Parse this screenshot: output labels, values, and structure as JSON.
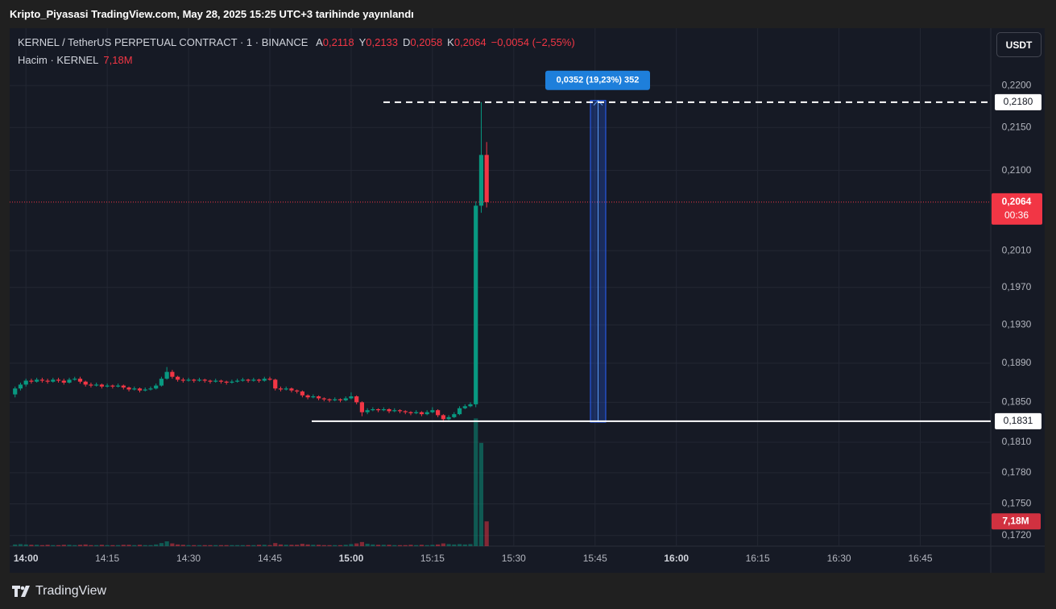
{
  "published": "Kripto_Piyasasi TradingView.com, May 28, 2025 15:25 UTC+3 tarihinde yayınlandı",
  "footer": "TradingView",
  "chart_data": {
    "type": "candlestick",
    "title": "KERNEL / TetherUS PERPETUAL CONTRACT · 1 · BINANCE",
    "legend": {
      "labels": [
        "A",
        "Y",
        "D",
        "K"
      ],
      "values": [
        "0,2118",
        "0,2133",
        "0,2058",
        "0,2064"
      ],
      "change": "−0,0054 (−2,55%)"
    },
    "currency": "USDT",
    "up_color": "#089981",
    "down_color": "#f23645",
    "log_scale": true,
    "grid": true,
    "x": [
      "13:58",
      "13:59",
      "14:00",
      "14:01",
      "14:02",
      "14:03",
      "14:04",
      "14:05",
      "14:06",
      "14:07",
      "14:08",
      "14:09",
      "14:10",
      "14:11",
      "14:12",
      "14:13",
      "14:14",
      "14:15",
      "14:16",
      "14:17",
      "14:18",
      "14:19",
      "14:20",
      "14:21",
      "14:22",
      "14:23",
      "14:24",
      "14:25",
      "14:26",
      "14:27",
      "14:28",
      "14:29",
      "14:30",
      "14:31",
      "14:32",
      "14:33",
      "14:34",
      "14:35",
      "14:36",
      "14:37",
      "14:38",
      "14:39",
      "14:40",
      "14:41",
      "14:42",
      "14:43",
      "14:44",
      "14:45",
      "14:46",
      "14:47",
      "14:48",
      "14:49",
      "14:50",
      "14:51",
      "14:52",
      "14:53",
      "14:54",
      "14:55",
      "14:56",
      "14:57",
      "14:58",
      "14:59",
      "15:00",
      "15:01",
      "15:02",
      "15:03",
      "15:04",
      "15:05",
      "15:06",
      "15:07",
      "15:08",
      "15:09",
      "15:10",
      "15:11",
      "15:12",
      "15:13",
      "15:14",
      "15:15",
      "15:16",
      "15:17",
      "15:18",
      "15:19",
      "15:20",
      "15:21",
      "15:22",
      "15:23",
      "15:24",
      "15:25"
    ],
    "open": [
      0.1858,
      0.1864,
      0.1868,
      0.1872,
      0.1871,
      0.1873,
      0.1872,
      0.1871,
      0.1873,
      0.1872,
      0.187,
      0.1873,
      0.1874,
      0.1871,
      0.1868,
      0.1867,
      0.1868,
      0.1866,
      0.1867,
      0.1866,
      0.1867,
      0.1865,
      0.1863,
      0.1864,
      0.1862,
      0.1863,
      0.1864,
      0.1867,
      0.1874,
      0.1881,
      0.1876,
      0.1873,
      0.1872,
      0.1873,
      0.1872,
      0.1873,
      0.1872,
      0.1871,
      0.1872,
      0.1871,
      0.187,
      0.1871,
      0.1872,
      0.1873,
      0.1872,
      0.1873,
      0.1872,
      0.1874,
      0.1873,
      0.1864,
      0.1863,
      0.1864,
      0.1862,
      0.1861,
      0.1857,
      0.1855,
      0.1856,
      0.1854,
      0.1853,
      0.1852,
      0.1853,
      0.1852,
      0.1854,
      0.1856,
      0.185,
      0.184,
      0.1842,
      0.1843,
      0.1842,
      0.1843,
      0.1841,
      0.1842,
      0.1841,
      0.184,
      0.1839,
      0.184,
      0.1838,
      0.184,
      0.1842,
      0.1837,
      0.1833,
      0.1835,
      0.1838,
      0.1844,
      0.1846,
      0.1848,
      0.206,
      0.2118
    ],
    "high": [
      0.1866,
      0.187,
      0.1874,
      0.1874,
      0.1875,
      0.1875,
      0.1874,
      0.1875,
      0.1875,
      0.1874,
      0.1875,
      0.1876,
      0.1876,
      0.1872,
      0.187,
      0.187,
      0.1869,
      0.1869,
      0.1868,
      0.1869,
      0.1868,
      0.1866,
      0.1866,
      0.1865,
      0.1865,
      0.1866,
      0.1869,
      0.1876,
      0.1886,
      0.1883,
      0.1877,
      0.1875,
      0.1875,
      0.1874,
      0.1875,
      0.1874,
      0.1873,
      0.1874,
      0.1873,
      0.1872,
      0.1873,
      0.1874,
      0.1875,
      0.1874,
      0.1875,
      0.1874,
      0.1876,
      0.1876,
      0.1874,
      0.1866,
      0.1866,
      0.1865,
      0.1863,
      0.1862,
      0.1858,
      0.1858,
      0.1857,
      0.1855,
      0.1854,
      0.1855,
      0.1854,
      0.1856,
      0.186,
      0.1857,
      0.1851,
      0.1844,
      0.1845,
      0.1844,
      0.1845,
      0.1844,
      0.1844,
      0.1843,
      0.1842,
      0.1841,
      0.1842,
      0.1841,
      0.1842,
      0.1845,
      0.1843,
      0.1838,
      0.1837,
      0.184,
      0.1846,
      0.1848,
      0.185,
      0.2065,
      0.218,
      0.2133
    ],
    "low": [
      0.1855,
      0.1862,
      0.1866,
      0.1869,
      0.187,
      0.187,
      0.1869,
      0.187,
      0.187,
      0.1868,
      0.1869,
      0.1872,
      0.1869,
      0.1866,
      0.1865,
      0.1866,
      0.1864,
      0.1865,
      0.1864,
      0.1865,
      0.1863,
      0.1861,
      0.1862,
      0.186,
      0.1861,
      0.1862,
      0.1863,
      0.1866,
      0.1873,
      0.1874,
      0.1871,
      0.187,
      0.1871,
      0.187,
      0.1871,
      0.187,
      0.1869,
      0.187,
      0.1869,
      0.1868,
      0.1869,
      0.187,
      0.1871,
      0.187,
      0.1871,
      0.187,
      0.1871,
      0.1872,
      0.1862,
      0.1861,
      0.1862,
      0.186,
      0.1859,
      0.1855,
      0.1853,
      0.1854,
      0.1852,
      0.1851,
      0.185,
      0.1851,
      0.185,
      0.1851,
      0.1853,
      0.1848,
      0.1836,
      0.1838,
      0.1841,
      0.184,
      0.1841,
      0.1839,
      0.184,
      0.1839,
      0.1838,
      0.1837,
      0.1838,
      0.1836,
      0.1837,
      0.1839,
      0.1835,
      0.183,
      0.1832,
      0.1834,
      0.1837,
      0.1843,
      0.1845,
      0.1845,
      0.2052,
      0.2058
    ],
    "close": [
      0.1864,
      0.1868,
      0.1872,
      0.1871,
      0.1873,
      0.1872,
      0.1871,
      0.1873,
      0.1872,
      0.187,
      0.1873,
      0.1874,
      0.1871,
      0.1868,
      0.1867,
      0.1868,
      0.1866,
      0.1867,
      0.1866,
      0.1867,
      0.1865,
      0.1863,
      0.1864,
      0.1862,
      0.1863,
      0.1864,
      0.1867,
      0.1874,
      0.1881,
      0.1876,
      0.1873,
      0.1872,
      0.1873,
      0.1872,
      0.1873,
      0.1872,
      0.1871,
      0.1872,
      0.1871,
      0.187,
      0.1871,
      0.1872,
      0.1873,
      0.1872,
      0.1873,
      0.1872,
      0.1874,
      0.1873,
      0.1864,
      0.1863,
      0.1864,
      0.1862,
      0.1861,
      0.1857,
      0.1855,
      0.1856,
      0.1854,
      0.1853,
      0.1852,
      0.1853,
      0.1852,
      0.1854,
      0.1856,
      0.185,
      0.184,
      0.1842,
      0.1843,
      0.1842,
      0.1843,
      0.1841,
      0.1842,
      0.1841,
      0.184,
      0.1839,
      0.184,
      0.1838,
      0.184,
      0.1842,
      0.1837,
      0.1833,
      0.1835,
      0.1838,
      0.1844,
      0.1846,
      0.1848,
      0.206,
      0.2118,
      0.2064
    ],
    "volume": {
      "title": "Hacim · KERNEL",
      "last_label": "7,18M",
      "ylim": [
        0,
        150
      ],
      "values": [
        0.5,
        0.6,
        0.5,
        0.4,
        0.4,
        0.3,
        0.4,
        0.3,
        0.3,
        0.4,
        0.4,
        0.3,
        0.4,
        0.5,
        0.3,
        0.3,
        0.4,
        0.3,
        0.3,
        0.3,
        0.4,
        0.4,
        0.3,
        0.4,
        0.3,
        0.3,
        0.5,
        0.9,
        1.4,
        0.8,
        0.5,
        0.4,
        0.3,
        0.3,
        0.3,
        0.3,
        0.3,
        0.3,
        0.3,
        0.3,
        0.3,
        0.3,
        0.3,
        0.3,
        0.3,
        0.4,
        0.4,
        0.3,
        0.9,
        0.5,
        0.4,
        0.4,
        0.4,
        0.7,
        0.5,
        0.4,
        0.4,
        0.3,
        0.3,
        0.3,
        0.3,
        0.4,
        0.6,
        0.8,
        1.2,
        0.7,
        0.5,
        0.4,
        0.4,
        0.4,
        0.3,
        0.3,
        0.3,
        0.4,
        0.3,
        0.4,
        0.3,
        0.4,
        0.5,
        0.8,
        0.6,
        0.5,
        0.6,
        0.5,
        0.6,
        37.0,
        29.9,
        7.18
      ]
    },
    "xlim": [
      "13:57",
      "16:58"
    ],
    "xticks": [
      "14:00",
      "14:15",
      "14:30",
      "14:45",
      "15:00",
      "15:15",
      "15:30",
      "15:45",
      "16:00",
      "16:15",
      "16:30",
      "16:45"
    ],
    "ylim": [
      0.171,
      0.227
    ],
    "yticks": [
      {
        "value": 0.22,
        "label": "0,2200"
      },
      {
        "value": 0.215,
        "label": "0,2150"
      },
      {
        "value": 0.21,
        "label": "0,2100"
      },
      {
        "value": 0.201,
        "label": "0,2010"
      },
      {
        "value": 0.197,
        "label": "0,1970"
      },
      {
        "value": 0.193,
        "label": "0,1930"
      },
      {
        "value": 0.189,
        "label": "0,1890"
      },
      {
        "value": 0.185,
        "label": "0,1850"
      },
      {
        "value": 0.181,
        "label": "0,1810"
      },
      {
        "value": 0.178,
        "label": "0,1780"
      },
      {
        "value": 0.175,
        "label": "0,1750"
      },
      {
        "value": 0.172,
        "label": "0,1720"
      }
    ],
    "price_lines": [
      {
        "value": 0.218,
        "label": "0,2180",
        "style": "dashed"
      },
      {
        "value": 0.1831,
        "label": "0,1831",
        "style": "solid"
      }
    ],
    "last_price": {
      "value": 0.2064,
      "label": "0,2064",
      "countdown": "00:36",
      "color": "#f23645"
    },
    "measure": {
      "from": 0.183,
      "to": 0.2182,
      "label": "0,0352 (19,23%) 352",
      "color": "#2962ff"
    }
  }
}
